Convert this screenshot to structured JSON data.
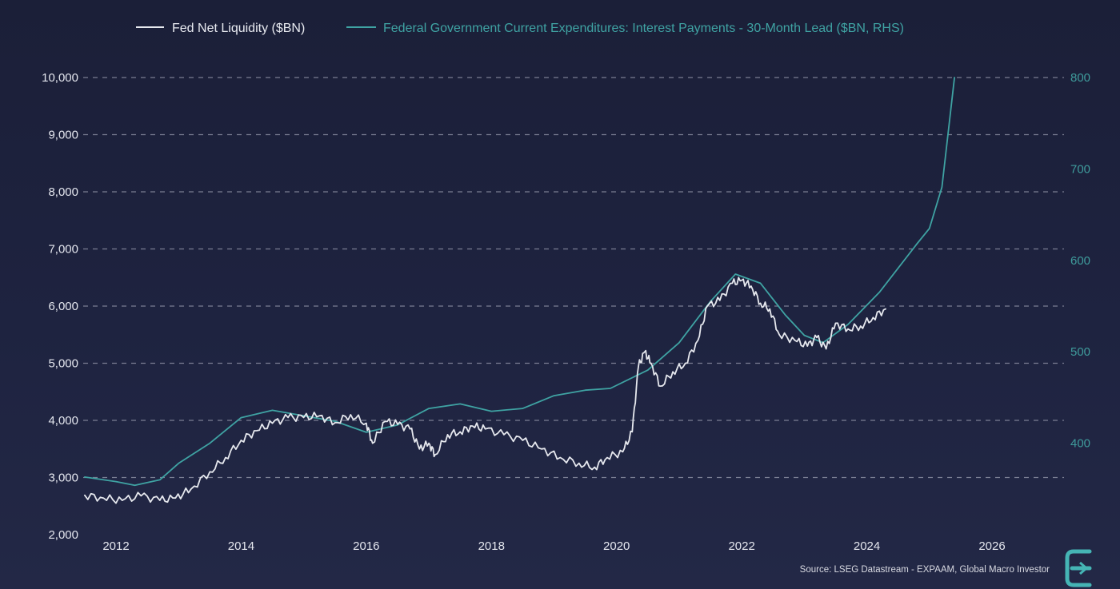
{
  "chart_data": {
    "type": "line",
    "title": "",
    "xlabel": "",
    "ylabel": "",
    "x_ticks": [
      "2012",
      "2014",
      "2016",
      "2018",
      "2020",
      "2022",
      "2024",
      "2026"
    ],
    "x_range": [
      2011.5,
      2027.0
    ],
    "y_left_ticks": [
      "2,000",
      "3,000",
      "4,000",
      "5,000",
      "6,000",
      "7,000",
      "8,000",
      "9,000",
      "10,000"
    ],
    "y_left_range": [
      2000,
      10000
    ],
    "y_right_ticks": [
      "400",
      "500",
      "600",
      "700",
      "800"
    ],
    "y_right_range": [
      300,
      800
    ],
    "grid": "horizontal dashed",
    "legend_position": "top",
    "series": [
      {
        "name": "Fed Net Liquidity ($BN)",
        "axis": "left",
        "color": "#e6e8ee",
        "points": [
          [
            2011.5,
            2690
          ],
          [
            2011.8,
            2640
          ],
          [
            2012.1,
            2600
          ],
          [
            2012.4,
            2680
          ],
          [
            2012.7,
            2600
          ],
          [
            2012.95,
            2640
          ],
          [
            2013.2,
            2800
          ],
          [
            2013.5,
            3100
          ],
          [
            2013.75,
            3350
          ],
          [
            2014.0,
            3650
          ],
          [
            2014.25,
            3820
          ],
          [
            2014.5,
            3950
          ],
          [
            2014.75,
            4050
          ],
          [
            2015.0,
            4050
          ],
          [
            2015.25,
            4080
          ],
          [
            2015.5,
            3960
          ],
          [
            2015.75,
            4100
          ],
          [
            2016.0,
            3950
          ],
          [
            2016.1,
            3600
          ],
          [
            2016.3,
            3980
          ],
          [
            2016.5,
            3930
          ],
          [
            2016.7,
            3850
          ],
          [
            2016.85,
            3500
          ],
          [
            2017.0,
            3600
          ],
          [
            2017.1,
            3400
          ],
          [
            2017.3,
            3750
          ],
          [
            2017.5,
            3800
          ],
          [
            2017.7,
            3900
          ],
          [
            2017.9,
            3850
          ],
          [
            2018.2,
            3750
          ],
          [
            2018.5,
            3650
          ],
          [
            2018.8,
            3500
          ],
          [
            2019.1,
            3350
          ],
          [
            2019.4,
            3250
          ],
          [
            2019.65,
            3180
          ],
          [
            2019.85,
            3350
          ],
          [
            2020.1,
            3450
          ],
          [
            2020.25,
            3800
          ],
          [
            2020.35,
            4950
          ],
          [
            2020.45,
            5200
          ],
          [
            2020.55,
            5000
          ],
          [
            2020.7,
            4600
          ],
          [
            2020.9,
            4850
          ],
          [
            2021.1,
            5000
          ],
          [
            2021.3,
            5400
          ],
          [
            2021.45,
            6000
          ],
          [
            2021.65,
            6100
          ],
          [
            2021.85,
            6400
          ],
          [
            2022.0,
            6450
          ],
          [
            2022.15,
            6350
          ],
          [
            2022.3,
            6050
          ],
          [
            2022.45,
            5950
          ],
          [
            2022.6,
            5500
          ],
          [
            2022.85,
            5400
          ],
          [
            2023.05,
            5300
          ],
          [
            2023.2,
            5450
          ],
          [
            2023.35,
            5250
          ],
          [
            2023.5,
            5700
          ],
          [
            2023.7,
            5600
          ],
          [
            2023.9,
            5650
          ],
          [
            2024.1,
            5800
          ],
          [
            2024.3,
            5950
          ]
        ]
      },
      {
        "name": "Federal Government Current Expenditures: Interest Payments - 30-Month Lead ($BN, RHS)",
        "axis": "right",
        "color": "#3fa3a3",
        "points": [
          [
            2011.5,
            363
          ],
          [
            2012.0,
            358
          ],
          [
            2012.3,
            354
          ],
          [
            2012.7,
            360
          ],
          [
            2013.0,
            378
          ],
          [
            2013.5,
            400
          ],
          [
            2014.0,
            428
          ],
          [
            2014.5,
            436
          ],
          [
            2015.0,
            430
          ],
          [
            2015.5,
            424
          ],
          [
            2016.0,
            412
          ],
          [
            2016.5,
            420
          ],
          [
            2017.0,
            438
          ],
          [
            2017.5,
            443
          ],
          [
            2018.0,
            435
          ],
          [
            2018.5,
            438
          ],
          [
            2019.0,
            452
          ],
          [
            2019.5,
            458
          ],
          [
            2019.9,
            460
          ],
          [
            2020.5,
            480
          ],
          [
            2021.0,
            510
          ],
          [
            2021.5,
            555
          ],
          [
            2021.9,
            585
          ],
          [
            2022.3,
            575
          ],
          [
            2022.7,
            540
          ],
          [
            2023.0,
            518
          ],
          [
            2023.3,
            510
          ],
          [
            2023.7,
            530
          ],
          [
            2024.2,
            565
          ],
          [
            2024.8,
            618
          ],
          [
            2025.0,
            635
          ],
          [
            2025.2,
            680
          ],
          [
            2025.4,
            800
          ]
        ]
      }
    ],
    "source": "Source: LSEG Datastream - EXPAAM, Global Macro Investor"
  }
}
